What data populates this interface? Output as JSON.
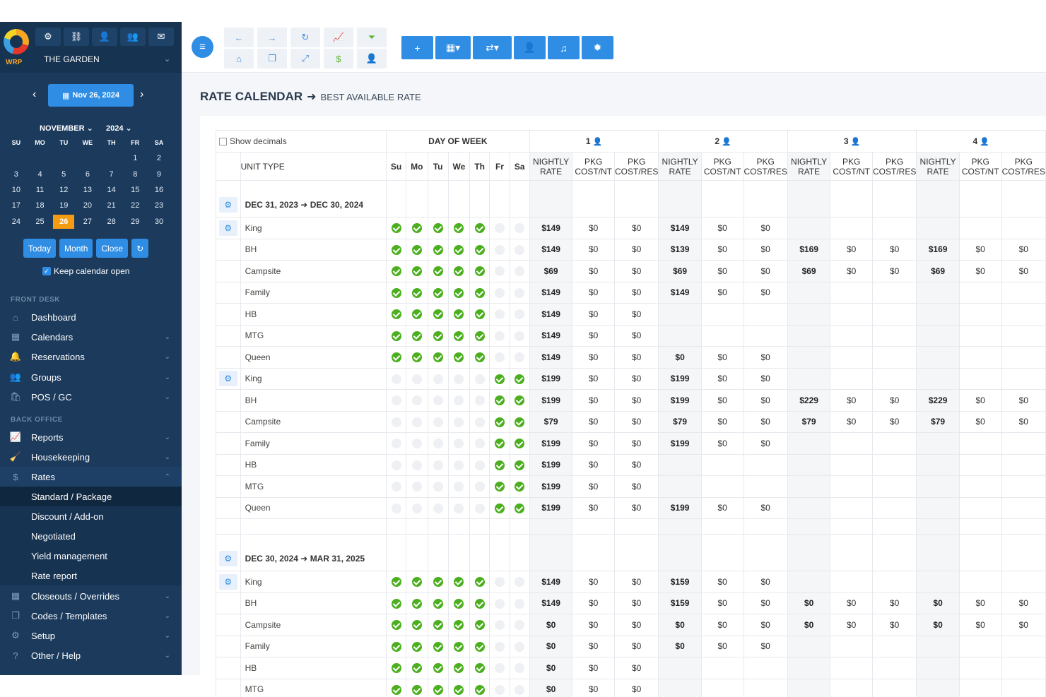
{
  "app": {
    "logo_text": "WRP",
    "property_name": "THE GARDEN",
    "top_icons": [
      "settings-users-icon",
      "link-icon",
      "add-user-icon",
      "users-icon",
      "mail-icon"
    ]
  },
  "datepicker": {
    "current_date": "Nov 26, 2024",
    "month_label": "NOVEMBER",
    "year_label": "2024",
    "dow": [
      "SU",
      "MO",
      "TU",
      "WE",
      "TH",
      "FR",
      "SA"
    ],
    "weeks": [
      [
        "",
        "",
        "",
        "",
        "",
        "1",
        "2"
      ],
      [
        "3",
        "4",
        "5",
        "6",
        "7",
        "8",
        "9"
      ],
      [
        "10",
        "11",
        "12",
        "13",
        "14",
        "15",
        "16"
      ],
      [
        "17",
        "18",
        "19",
        "20",
        "21",
        "22",
        "23"
      ],
      [
        "24",
        "25",
        "26",
        "27",
        "28",
        "29",
        "30"
      ]
    ],
    "selected_day": "26",
    "buttons": {
      "today": "Today",
      "month": "Month",
      "close": "Close"
    },
    "keep_open_label": "Keep calendar open"
  },
  "nav": {
    "front_desk_title": "FRONT DESK",
    "back_office_title": "BACK OFFICE",
    "dashboard": "Dashboard",
    "calendars": "Calendars",
    "reservations": "Reservations",
    "groups": "Groups",
    "pos": "POS / GC",
    "reports": "Reports",
    "housekeeping": "Housekeeping",
    "rates": "Rates",
    "rates_sub": [
      "Standard / Package",
      "Discount / Add-on",
      "Negotiated",
      "Yield management",
      "Rate report"
    ],
    "closeouts": "Closeouts / Overrides",
    "codes": "Codes / Templates",
    "setup": "Setup",
    "other": "Other / Help"
  },
  "page": {
    "title": "RATE CALENDAR",
    "subtitle": "BEST AVAILABLE RATE"
  },
  "table": {
    "show_decimals": "Show decimals",
    "day_of_week": "DAY OF WEEK",
    "unit_type": "UNIT TYPE",
    "dow": [
      "Su",
      "Mo",
      "Tu",
      "We",
      "Th",
      "Fr",
      "Sa"
    ],
    "occupancy": [
      "1",
      "2",
      "3",
      "4"
    ],
    "sub_headers": [
      "NIGHTLY RATE",
      "PKG COST/NT",
      "PKG COST/RES"
    ],
    "periods": [
      {
        "label_start": "DEC 31, 2023",
        "label_end": "DEC 30, 2024",
        "groups": [
          {
            "days": [
              1,
              1,
              1,
              1,
              1,
              0,
              0
            ],
            "rows": [
              {
                "unit": "King",
                "r": [
                  [
                    "$149",
                    "$0",
                    "$0"
                  ],
                  [
                    "$149",
                    "$0",
                    "$0"
                  ],
                  [
                    "",
                    "",
                    ""
                  ],
                  [
                    "",
                    "",
                    ""
                  ]
                ]
              },
              {
                "unit": "BH",
                "r": [
                  [
                    "$149",
                    "$0",
                    "$0"
                  ],
                  [
                    "$139",
                    "$0",
                    "$0"
                  ],
                  [
                    "$169",
                    "$0",
                    "$0"
                  ],
                  [
                    "$169",
                    "$0",
                    "$0"
                  ]
                ]
              },
              {
                "unit": "Campsite",
                "r": [
                  [
                    "$69",
                    "$0",
                    "$0"
                  ],
                  [
                    "$69",
                    "$0",
                    "$0"
                  ],
                  [
                    "$69",
                    "$0",
                    "$0"
                  ],
                  [
                    "$69",
                    "$0",
                    "$0"
                  ]
                ]
              },
              {
                "unit": "Family",
                "r": [
                  [
                    "$149",
                    "$0",
                    "$0"
                  ],
                  [
                    "$149",
                    "$0",
                    "$0"
                  ],
                  [
                    "",
                    "",
                    ""
                  ],
                  [
                    "",
                    "",
                    ""
                  ]
                ]
              },
              {
                "unit": "HB",
                "r": [
                  [
                    "$149",
                    "$0",
                    "$0"
                  ],
                  [
                    "",
                    "",
                    ""
                  ],
                  [
                    "",
                    "",
                    ""
                  ],
                  [
                    "",
                    "",
                    ""
                  ]
                ]
              },
              {
                "unit": "MTG",
                "r": [
                  [
                    "$149",
                    "$0",
                    "$0"
                  ],
                  [
                    "",
                    "",
                    ""
                  ],
                  [
                    "",
                    "",
                    ""
                  ],
                  [
                    "",
                    "",
                    ""
                  ]
                ]
              },
              {
                "unit": "Queen",
                "r": [
                  [
                    "$149",
                    "$0",
                    "$0"
                  ],
                  [
                    "$0",
                    "$0",
                    "$0"
                  ],
                  [
                    "",
                    "",
                    ""
                  ],
                  [
                    "",
                    "",
                    ""
                  ]
                ]
              }
            ]
          },
          {
            "days": [
              0,
              0,
              0,
              0,
              0,
              1,
              1
            ],
            "rows": [
              {
                "unit": "King",
                "r": [
                  [
                    "$199",
                    "$0",
                    "$0"
                  ],
                  [
                    "$199",
                    "$0",
                    "$0"
                  ],
                  [
                    "",
                    "",
                    ""
                  ],
                  [
                    "",
                    "",
                    ""
                  ]
                ]
              },
              {
                "unit": "BH",
                "r": [
                  [
                    "$199",
                    "$0",
                    "$0"
                  ],
                  [
                    "$199",
                    "$0",
                    "$0"
                  ],
                  [
                    "$229",
                    "$0",
                    "$0"
                  ],
                  [
                    "$229",
                    "$0",
                    "$0"
                  ]
                ]
              },
              {
                "unit": "Campsite",
                "r": [
                  [
                    "$79",
                    "$0",
                    "$0"
                  ],
                  [
                    "$79",
                    "$0",
                    "$0"
                  ],
                  [
                    "$79",
                    "$0",
                    "$0"
                  ],
                  [
                    "$79",
                    "$0",
                    "$0"
                  ]
                ]
              },
              {
                "unit": "Family",
                "r": [
                  [
                    "$199",
                    "$0",
                    "$0"
                  ],
                  [
                    "$199",
                    "$0",
                    "$0"
                  ],
                  [
                    "",
                    "",
                    ""
                  ],
                  [
                    "",
                    "",
                    ""
                  ]
                ]
              },
              {
                "unit": "HB",
                "r": [
                  [
                    "$199",
                    "$0",
                    "$0"
                  ],
                  [
                    "",
                    "",
                    ""
                  ],
                  [
                    "",
                    "",
                    ""
                  ],
                  [
                    "",
                    "",
                    ""
                  ]
                ]
              },
              {
                "unit": "MTG",
                "r": [
                  [
                    "$199",
                    "$0",
                    "$0"
                  ],
                  [
                    "",
                    "",
                    ""
                  ],
                  [
                    "",
                    "",
                    ""
                  ],
                  [
                    "",
                    "",
                    ""
                  ]
                ]
              },
              {
                "unit": "Queen",
                "r": [
                  [
                    "$199",
                    "$0",
                    "$0"
                  ],
                  [
                    "$199",
                    "$0",
                    "$0"
                  ],
                  [
                    "",
                    "",
                    ""
                  ],
                  [
                    "",
                    "",
                    ""
                  ]
                ]
              }
            ]
          }
        ]
      },
      {
        "label_start": "DEC 30, 2024",
        "label_end": "MAR 31, 2025",
        "groups": [
          {
            "days": [
              1,
              1,
              1,
              1,
              1,
              0,
              0
            ],
            "rows": [
              {
                "unit": "King",
                "r": [
                  [
                    "$149",
                    "$0",
                    "$0"
                  ],
                  [
                    "$159",
                    "$0",
                    "$0"
                  ],
                  [
                    "",
                    "",
                    ""
                  ],
                  [
                    "",
                    "",
                    ""
                  ]
                ]
              },
              {
                "unit": "BH",
                "r": [
                  [
                    "$149",
                    "$0",
                    "$0"
                  ],
                  [
                    "$159",
                    "$0",
                    "$0"
                  ],
                  [
                    "$0",
                    "$0",
                    "$0"
                  ],
                  [
                    "$0",
                    "$0",
                    "$0"
                  ]
                ]
              },
              {
                "unit": "Campsite",
                "r": [
                  [
                    "$0",
                    "$0",
                    "$0"
                  ],
                  [
                    "$0",
                    "$0",
                    "$0"
                  ],
                  [
                    "$0",
                    "$0",
                    "$0"
                  ],
                  [
                    "$0",
                    "$0",
                    "$0"
                  ]
                ]
              },
              {
                "unit": "Family",
                "r": [
                  [
                    "$0",
                    "$0",
                    "$0"
                  ],
                  [
                    "$0",
                    "$0",
                    "$0"
                  ],
                  [
                    "",
                    "",
                    ""
                  ],
                  [
                    "",
                    "",
                    ""
                  ]
                ]
              },
              {
                "unit": "HB",
                "r": [
                  [
                    "$0",
                    "$0",
                    "$0"
                  ],
                  [
                    "",
                    "",
                    ""
                  ],
                  [
                    "",
                    "",
                    ""
                  ],
                  [
                    "",
                    "",
                    ""
                  ]
                ]
              },
              {
                "unit": "MTG",
                "r": [
                  [
                    "$0",
                    "$0",
                    "$0"
                  ],
                  [
                    "",
                    "",
                    ""
                  ],
                  [
                    "",
                    "",
                    ""
                  ],
                  [
                    "",
                    "",
                    ""
                  ]
                ]
              }
            ]
          }
        ]
      }
    ]
  }
}
